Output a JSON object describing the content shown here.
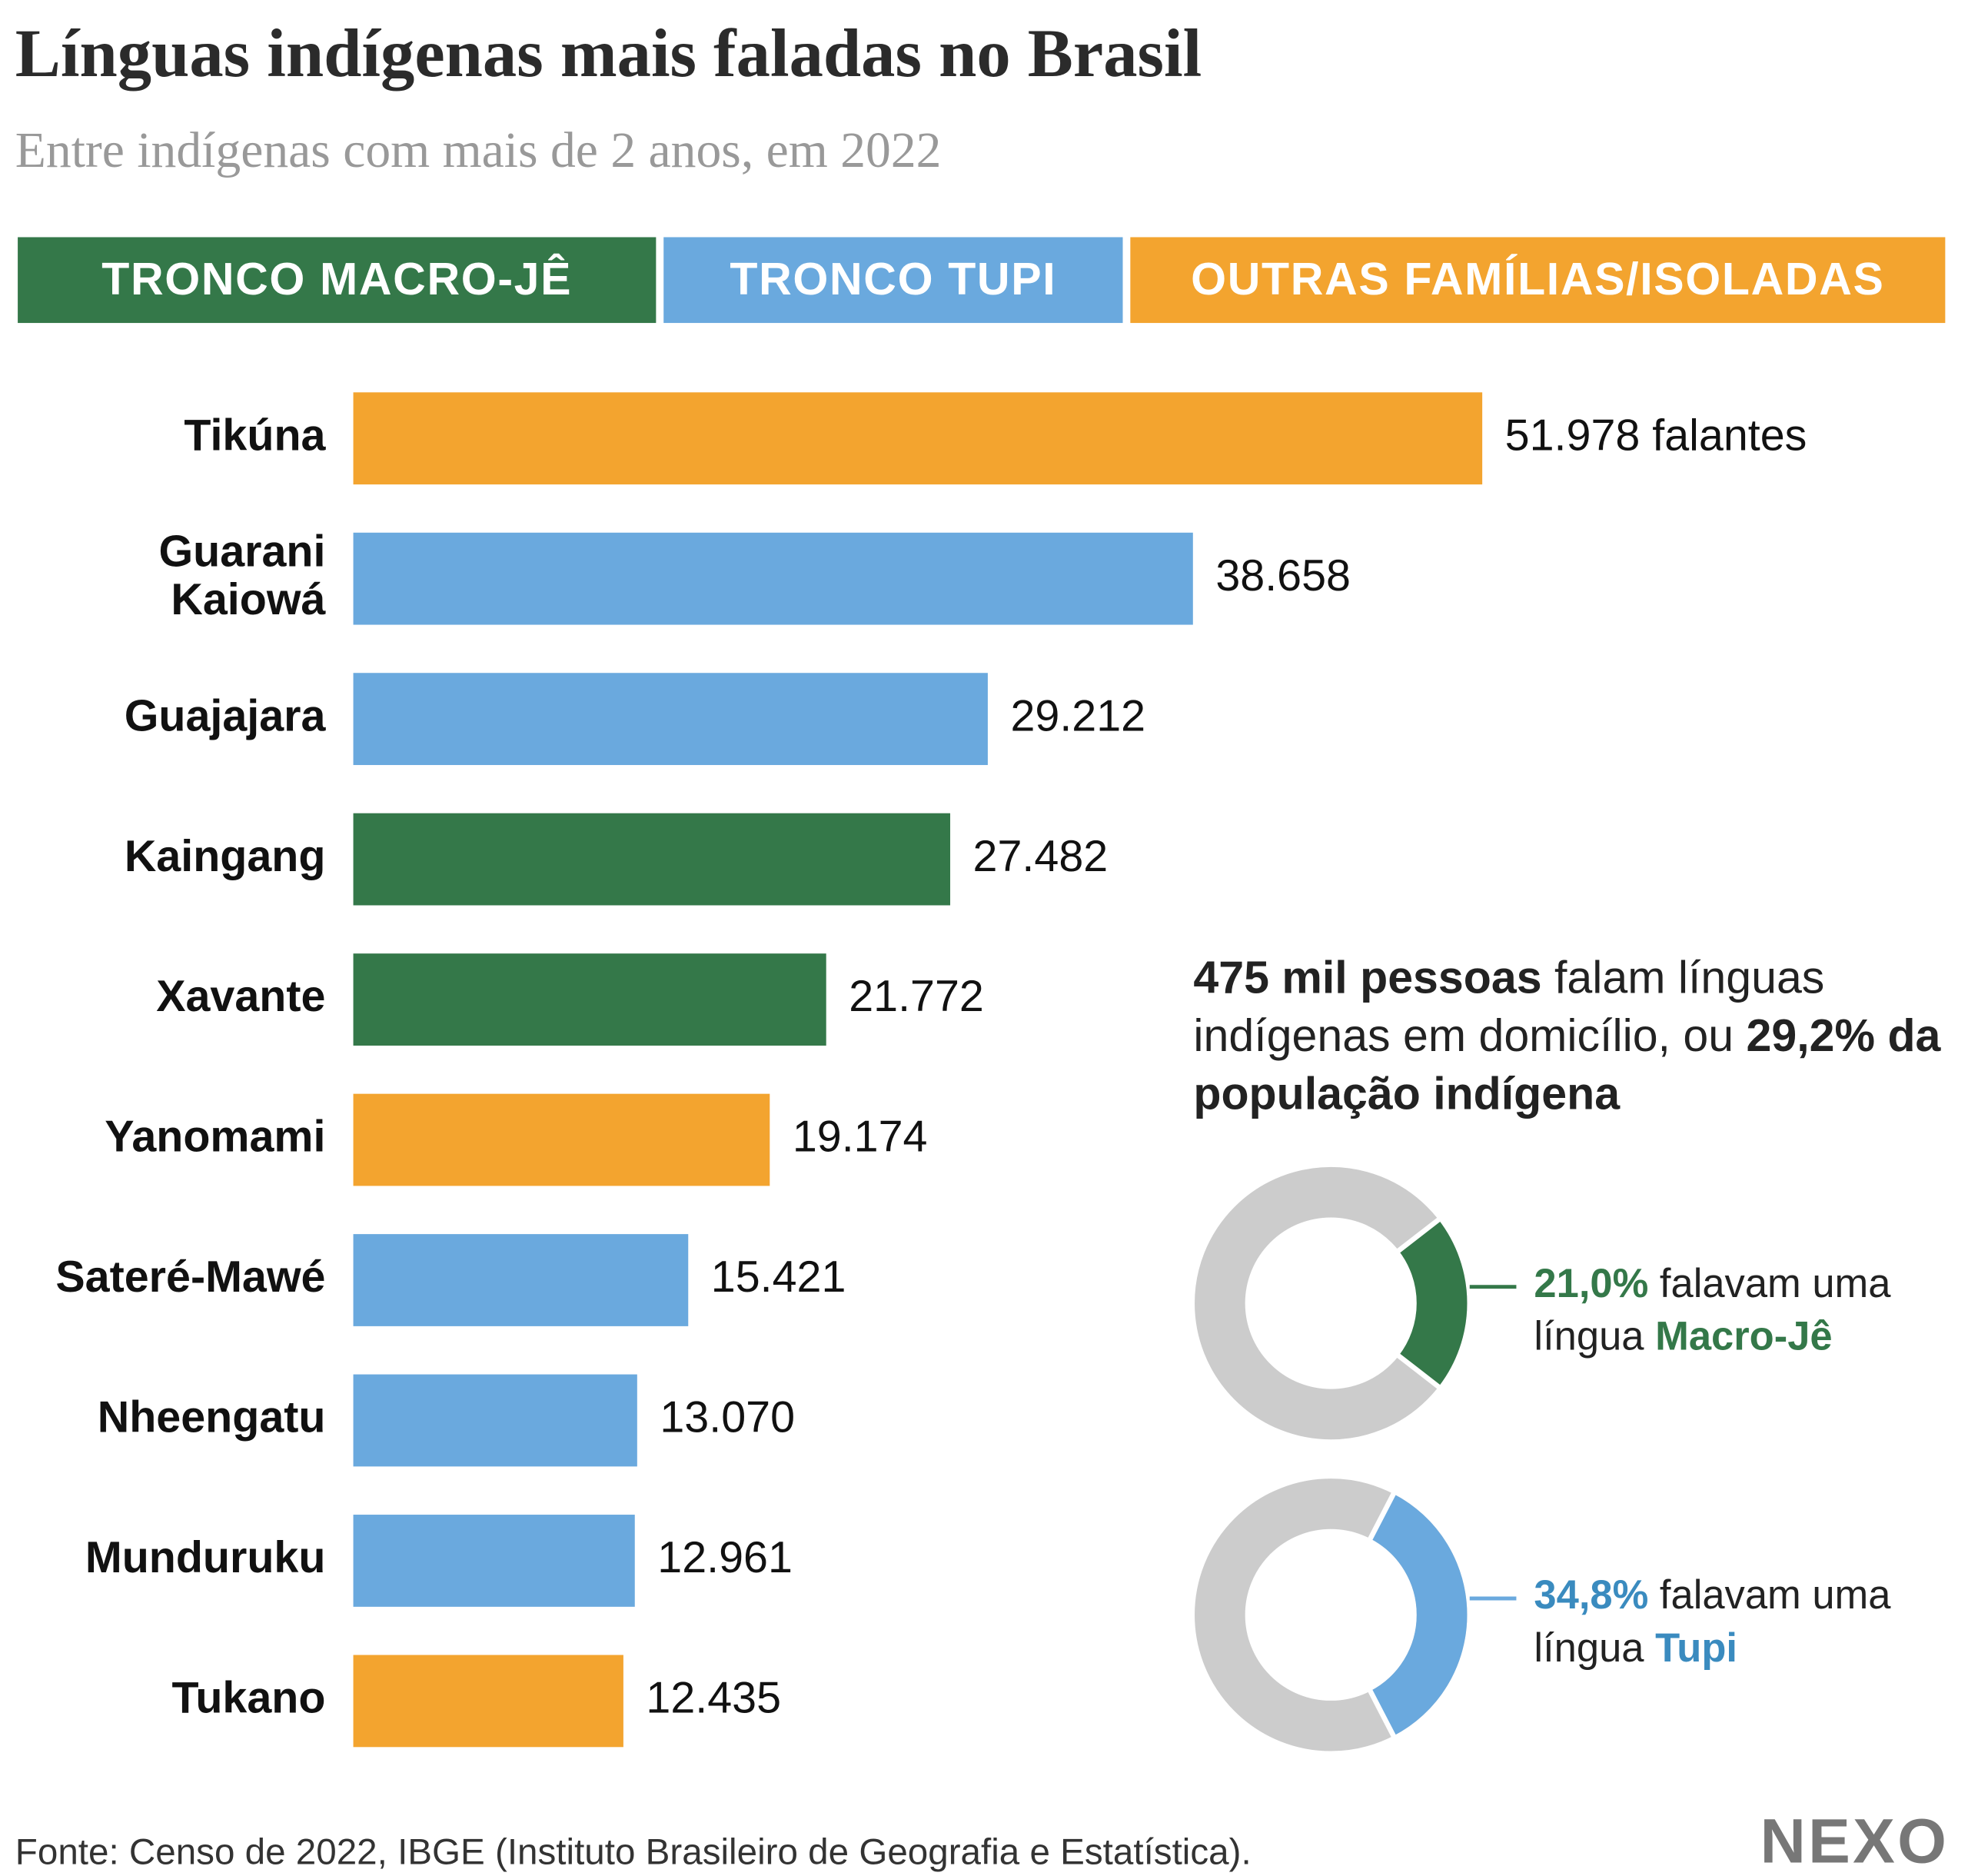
{
  "chart_data": [
    {
      "type": "bar",
      "title": "Línguas indígenas mais faladas no Brasil",
      "subtitle": "Entre indígenas com mais de 2 anos, em 2022",
      "legend": [
        {
          "name": "TRONCO MACRO-JÊ",
          "color": "#347849"
        },
        {
          "name": "TRONCO TUPI",
          "color": "#6aa9de"
        },
        {
          "name": "OUTRAS FAMÍLIAS/ISOLADAS",
          "color": "#f3a42f"
        }
      ],
      "categories": [
        "Tikúna",
        "Guarani Kaiowá",
        "Guajajara",
        "Kaingang",
        "Xavante",
        "Yanomami",
        "Sateré-Mawé",
        "Nheengatu",
        "Munduruku",
        "Tukano"
      ],
      "values": [
        51978,
        38658,
        29212,
        27482,
        21772,
        19174,
        15421,
        13070,
        12961,
        12435
      ],
      "value_labels": [
        "51.978 falantes",
        "38.658",
        "29.212",
        "27.482",
        "21.772",
        "19.174",
        "15.421",
        "13.070",
        "12.961",
        "12.435"
      ],
      "colors": [
        "#f3a42f",
        "#6aa9de",
        "#6aa9de",
        "#347849",
        "#347849",
        "#f3a42f",
        "#6aa9de",
        "#6aa9de",
        "#6aa9de",
        "#f3a42f"
      ],
      "annotation": {
        "bold1": "475 mil pessoas",
        "text": "falam línguas indígenas em domicílio, ou",
        "bold2": "29,2% da população indígena"
      },
      "source": "Fonte: Censo de 2022, IBGE (Instituto Brasileiro de Geografia e Estatística).",
      "logo": "NEXO"
    },
    {
      "type": "pie",
      "values": [
        21.0
      ],
      "value_labels": [
        "21,0%"
      ],
      "color": "#347849",
      "track_color": "#cccccc",
      "text_color": "#347849",
      "label": "falavam uma língua",
      "group": "Macro-Jê"
    },
    {
      "type": "pie",
      "values": [
        34.8
      ],
      "value_labels": [
        "34,8%"
      ],
      "color": "#6aa9de",
      "track_color": "#cccccc",
      "text_color": "#3a8bbf",
      "label": "falavam uma língua",
      "group": "Tupi"
    }
  ]
}
